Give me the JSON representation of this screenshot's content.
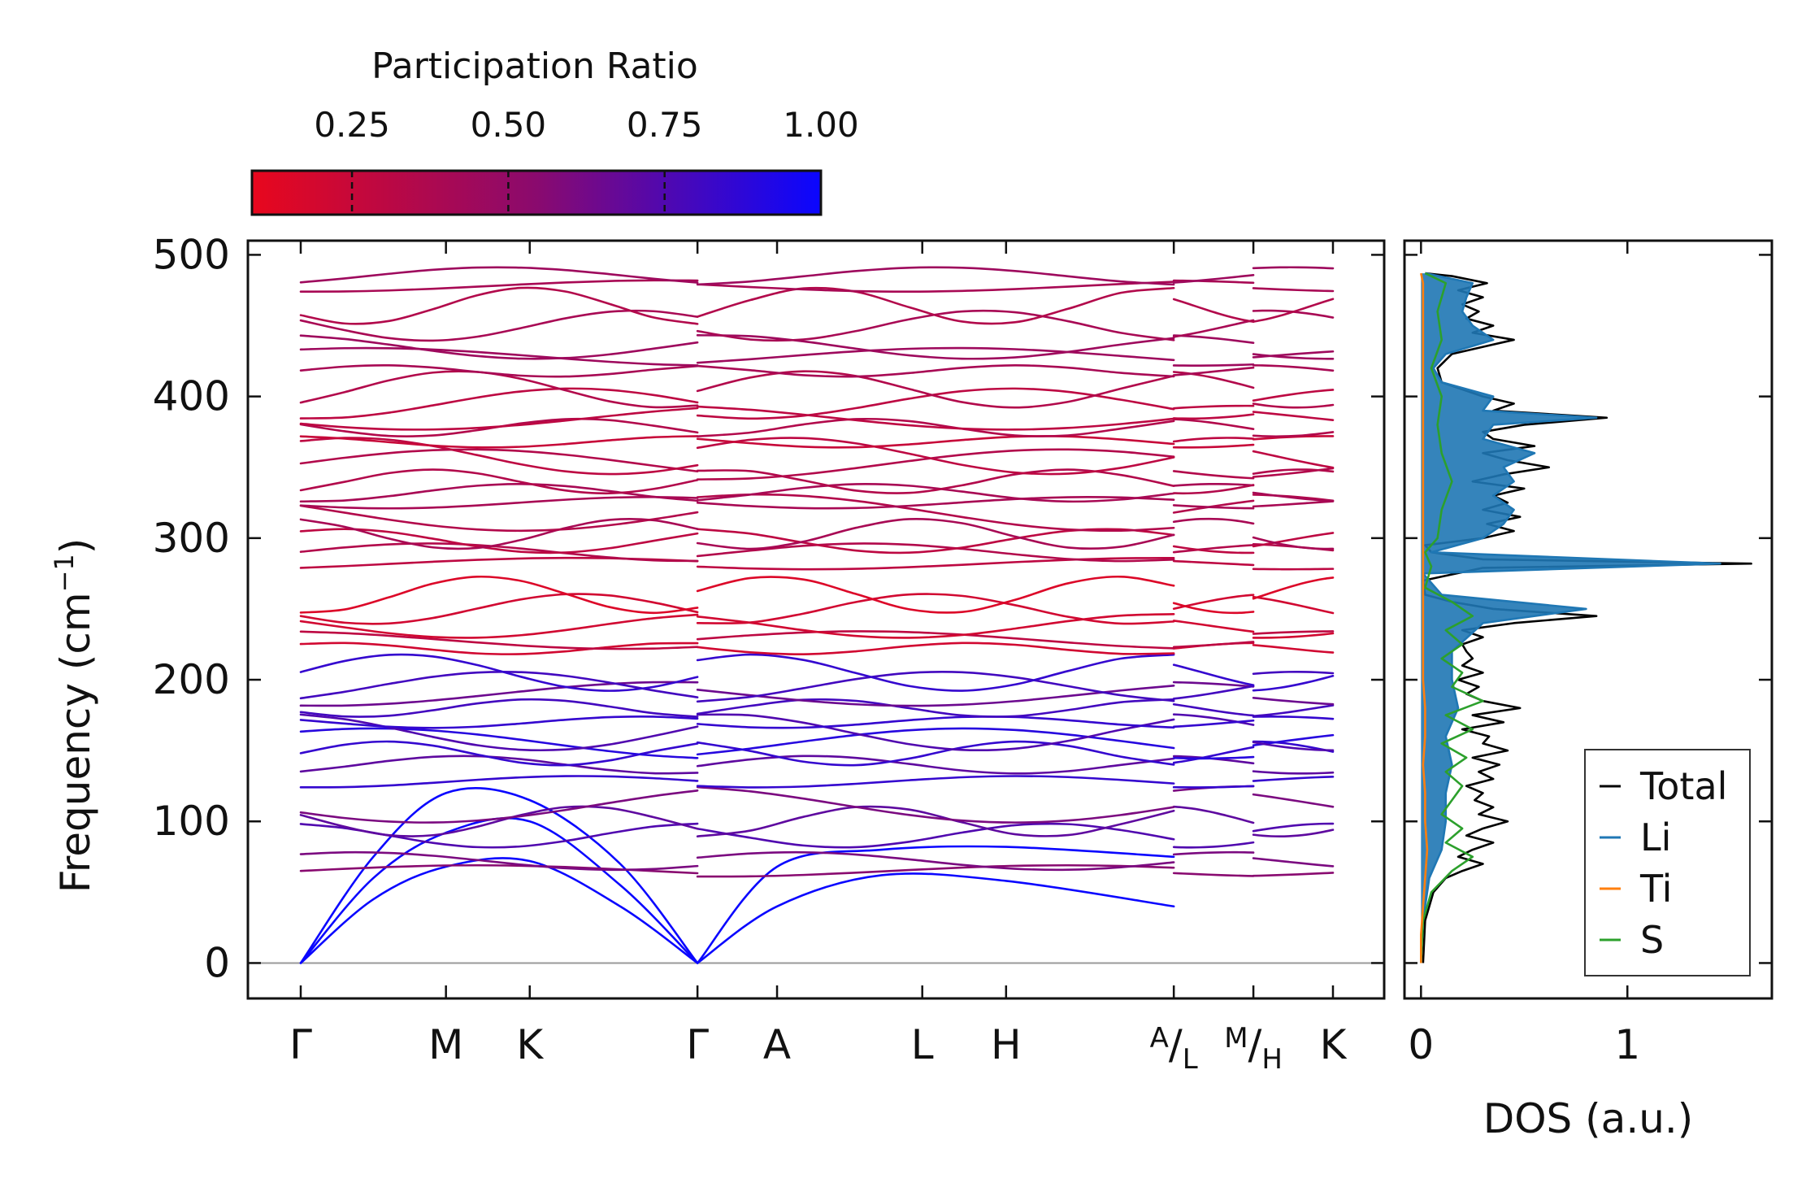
{
  "colorbar": {
    "title": "Participation Ratio",
    "ticks": [
      0.25,
      0.5,
      0.75,
      1.0
    ],
    "tick_labels": [
      "0.25",
      "0.50",
      "0.75",
      "1.00"
    ],
    "range": [
      0.09,
      1.0
    ],
    "color_low": "#e8071d",
    "color_mid": "#8a0a6e",
    "color_high": "#0a06ff"
  },
  "chart_data": [
    {
      "type": "line",
      "subtype": "phonon-band-structure",
      "ylabel": "Frequency (cm",
      "ylabel_sup": "−1",
      "ylabel_close": ")",
      "ylim": [
        -25,
        510
      ],
      "yticks": [
        0,
        100,
        200,
        300,
        400,
        500
      ],
      "ytick_labels": [
        "0",
        "100",
        "200",
        "300",
        "400",
        "500"
      ],
      "path_labels": [
        {
          "name": "Γ",
          "sup": "",
          "sub": "",
          "x": 0
        },
        {
          "name": "M",
          "sup": "",
          "sub": "",
          "x": 1.0
        },
        {
          "name": "K",
          "sup": "",
          "sub": "",
          "x": 1.577
        },
        {
          "name": "Γ",
          "sup": "",
          "sub": "",
          "x": 2.732
        },
        {
          "name": "A",
          "sup": "",
          "sub": "",
          "x": 3.28
        },
        {
          "name": "L",
          "sup": "",
          "sub": "",
          "x": 4.28
        },
        {
          "name": "H",
          "sup": "",
          "sub": "",
          "x": 4.857
        },
        {
          "name": "",
          "sup": "A",
          "sub": "L",
          "x": 6.012
        },
        {
          "name": "",
          "sup": "M",
          "sub": "H",
          "x": 6.56
        },
        {
          "name": "K",
          "sup": "",
          "sub": "",
          "x": 7.108
        }
      ],
      "segments": [
        [
          0,
          2.732
        ],
        [
          2.732,
          6.012
        ],
        [
          6.012,
          6.56
        ],
        [
          6.56,
          7.108
        ]
      ],
      "zero_line": 0,
      "acoustic_branches": [
        {
          "x": [
            0,
            0.5,
            1.0,
            1.577,
            2.2,
            2.732
          ],
          "y": [
            0,
            45,
            68,
            72,
            40,
            0
          ],
          "pr": 1.0
        },
        {
          "x": [
            0,
            0.5,
            1.0,
            1.577,
            2.2,
            2.732
          ],
          "y": [
            0,
            60,
            92,
            100,
            55,
            0
          ],
          "pr": 1.0
        },
        {
          "x": [
            0,
            0.5,
            1.0,
            1.577,
            2.2,
            2.732
          ],
          "y": [
            0,
            75,
            120,
            115,
            70,
            0
          ],
          "pr": 1.0
        },
        {
          "x": [
            2.732,
            3.28,
            4.0,
            4.857,
            6.012
          ],
          "y": [
            0,
            40,
            62,
            58,
            40
          ],
          "pr": 1.0
        },
        {
          "x": [
            2.732,
            3.28,
            4.0,
            4.857,
            6.012
          ],
          "y": [
            0,
            68,
            80,
            82,
            75
          ],
          "pr": 1.0
        }
      ],
      "optical_band_frequencies_gamma": [
        65,
        72,
        90,
        100,
        112,
        128,
        140,
        148,
        155,
        163,
        170,
        180,
        190,
        195,
        205,
        222,
        228,
        238,
        250,
        260,
        282,
        290,
        298,
        303,
        318,
        325,
        332,
        340,
        352,
        358,
        368,
        378,
        385,
        395,
        405,
        418,
        428,
        435,
        450,
        464,
        478,
        485
      ],
      "optical_band_pr": [
        0.55,
        0.6,
        0.75,
        0.7,
        0.6,
        0.85,
        0.7,
        0.85,
        0.9,
        0.75,
        0.85,
        0.8,
        0.65,
        0.8,
        0.85,
        0.2,
        0.3,
        0.2,
        0.2,
        0.15,
        0.3,
        0.35,
        0.3,
        0.4,
        0.35,
        0.4,
        0.4,
        0.35,
        0.35,
        0.3,
        0.25,
        0.35,
        0.3,
        0.3,
        0.35,
        0.4,
        0.45,
        0.45,
        0.4,
        0.35,
        0.4,
        0.45
      ]
    },
    {
      "type": "line",
      "subtype": "density-of-states",
      "xlabel": "DOS (a.u.)",
      "xlim": [
        -0.08,
        1.7
      ],
      "xticks": [
        0,
        1
      ],
      "xtick_labels": [
        "0",
        "1"
      ],
      "ylim": [
        -25,
        510
      ],
      "legend_position": "lower-right",
      "series": [
        {
          "name": "Total",
          "color": "#000000",
          "freq": [
            0,
            30,
            50,
            60,
            65,
            70,
            75,
            80,
            85,
            90,
            95,
            100,
            105,
            110,
            115,
            120,
            125,
            130,
            135,
            140,
            145,
            150,
            155,
            160,
            165,
            170,
            175,
            180,
            185,
            190,
            195,
            200,
            205,
            210,
            215,
            220,
            225,
            230,
            235,
            240,
            245,
            250,
            255,
            260,
            270,
            279,
            282,
            285,
            290,
            295,
            300,
            305,
            310,
            315,
            320,
            325,
            330,
            335,
            340,
            345,
            350,
            355,
            360,
            365,
            370,
            375,
            380,
            385,
            390,
            395,
            400,
            405,
            410,
            420,
            430,
            435,
            440,
            445,
            450,
            455,
            460,
            465,
            470,
            475,
            480,
            485,
            487
          ],
          "dos": [
            0.01,
            0.02,
            0.06,
            0.12,
            0.2,
            0.3,
            0.18,
            0.25,
            0.35,
            0.22,
            0.3,
            0.42,
            0.28,
            0.35,
            0.26,
            0.3,
            0.22,
            0.35,
            0.28,
            0.38,
            0.25,
            0.42,
            0.3,
            0.33,
            0.2,
            0.4,
            0.25,
            0.48,
            0.3,
            0.22,
            0.28,
            0.18,
            0.3,
            0.2,
            0.25,
            0.22,
            0.2,
            0.3,
            0.2,
            0.45,
            0.85,
            0.35,
            0.15,
            0.02,
            0.01,
            0.3,
            1.6,
            0.3,
            0.05,
            0.02,
            0.3,
            0.45,
            0.32,
            0.48,
            0.3,
            0.42,
            0.35,
            0.5,
            0.25,
            0.4,
            0.62,
            0.42,
            0.3,
            0.55,
            0.35,
            0.3,
            0.5,
            0.9,
            0.35,
            0.45,
            0.3,
            0.2,
            0.1,
            0.08,
            0.15,
            0.3,
            0.45,
            0.25,
            0.35,
            0.22,
            0.28,
            0.2,
            0.3,
            0.18,
            0.32,
            0.15,
            0.02
          ]
        },
        {
          "name": "Li",
          "color": "#1f77b4",
          "freq": [
            0,
            30,
            60,
            80,
            100,
            120,
            140,
            160,
            180,
            200,
            220,
            240,
            250,
            260,
            275,
            282,
            290,
            300,
            310,
            320,
            330,
            340,
            350,
            360,
            370,
            380,
            385,
            390,
            400,
            410,
            420,
            430,
            440,
            450,
            460,
            470,
            480,
            487
          ],
          "dos": [
            0.0,
            0.01,
            0.04,
            0.1,
            0.12,
            0.12,
            0.15,
            0.12,
            0.18,
            0.15,
            0.15,
            0.3,
            0.8,
            0.1,
            0.01,
            1.45,
            0.05,
            0.3,
            0.4,
            0.45,
            0.35,
            0.45,
            0.4,
            0.55,
            0.3,
            0.35,
            0.85,
            0.3,
            0.35,
            0.1,
            0.06,
            0.12,
            0.35,
            0.25,
            0.2,
            0.22,
            0.25,
            0.02
          ]
        },
        {
          "name": "Ti",
          "color": "#ff7f0e",
          "freq": [
            0,
            20,
            40,
            60,
            80,
            100,
            120,
            140,
            160,
            180,
            200,
            240,
            280,
            320,
            360,
            400,
            440,
            480,
            487
          ],
          "dos": [
            0.0,
            0.0,
            0.01,
            0.02,
            0.03,
            0.02,
            0.02,
            0.01,
            0.02,
            0.02,
            0.01,
            0.01,
            0.01,
            0.01,
            0.01,
            0.01,
            0.01,
            0.01,
            0.0
          ]
        },
        {
          "name": "S",
          "color": "#2ca02c",
          "freq": [
            0,
            30,
            50,
            65,
            75,
            85,
            95,
            105,
            115,
            125,
            135,
            145,
            155,
            165,
            175,
            185,
            195,
            205,
            215,
            225,
            235,
            245,
            255,
            265,
            280,
            290,
            300,
            320,
            340,
            360,
            380,
            400,
            420,
            440,
            460,
            480,
            487
          ],
          "dos": [
            0.0,
            0.01,
            0.05,
            0.15,
            0.25,
            0.12,
            0.2,
            0.1,
            0.15,
            0.2,
            0.12,
            0.22,
            0.1,
            0.25,
            0.12,
            0.3,
            0.15,
            0.2,
            0.1,
            0.2,
            0.12,
            0.25,
            0.15,
            0.02,
            0.05,
            0.02,
            0.08,
            0.1,
            0.15,
            0.1,
            0.08,
            0.1,
            0.05,
            0.1,
            0.08,
            0.12,
            0.02
          ]
        }
      ]
    }
  ]
}
